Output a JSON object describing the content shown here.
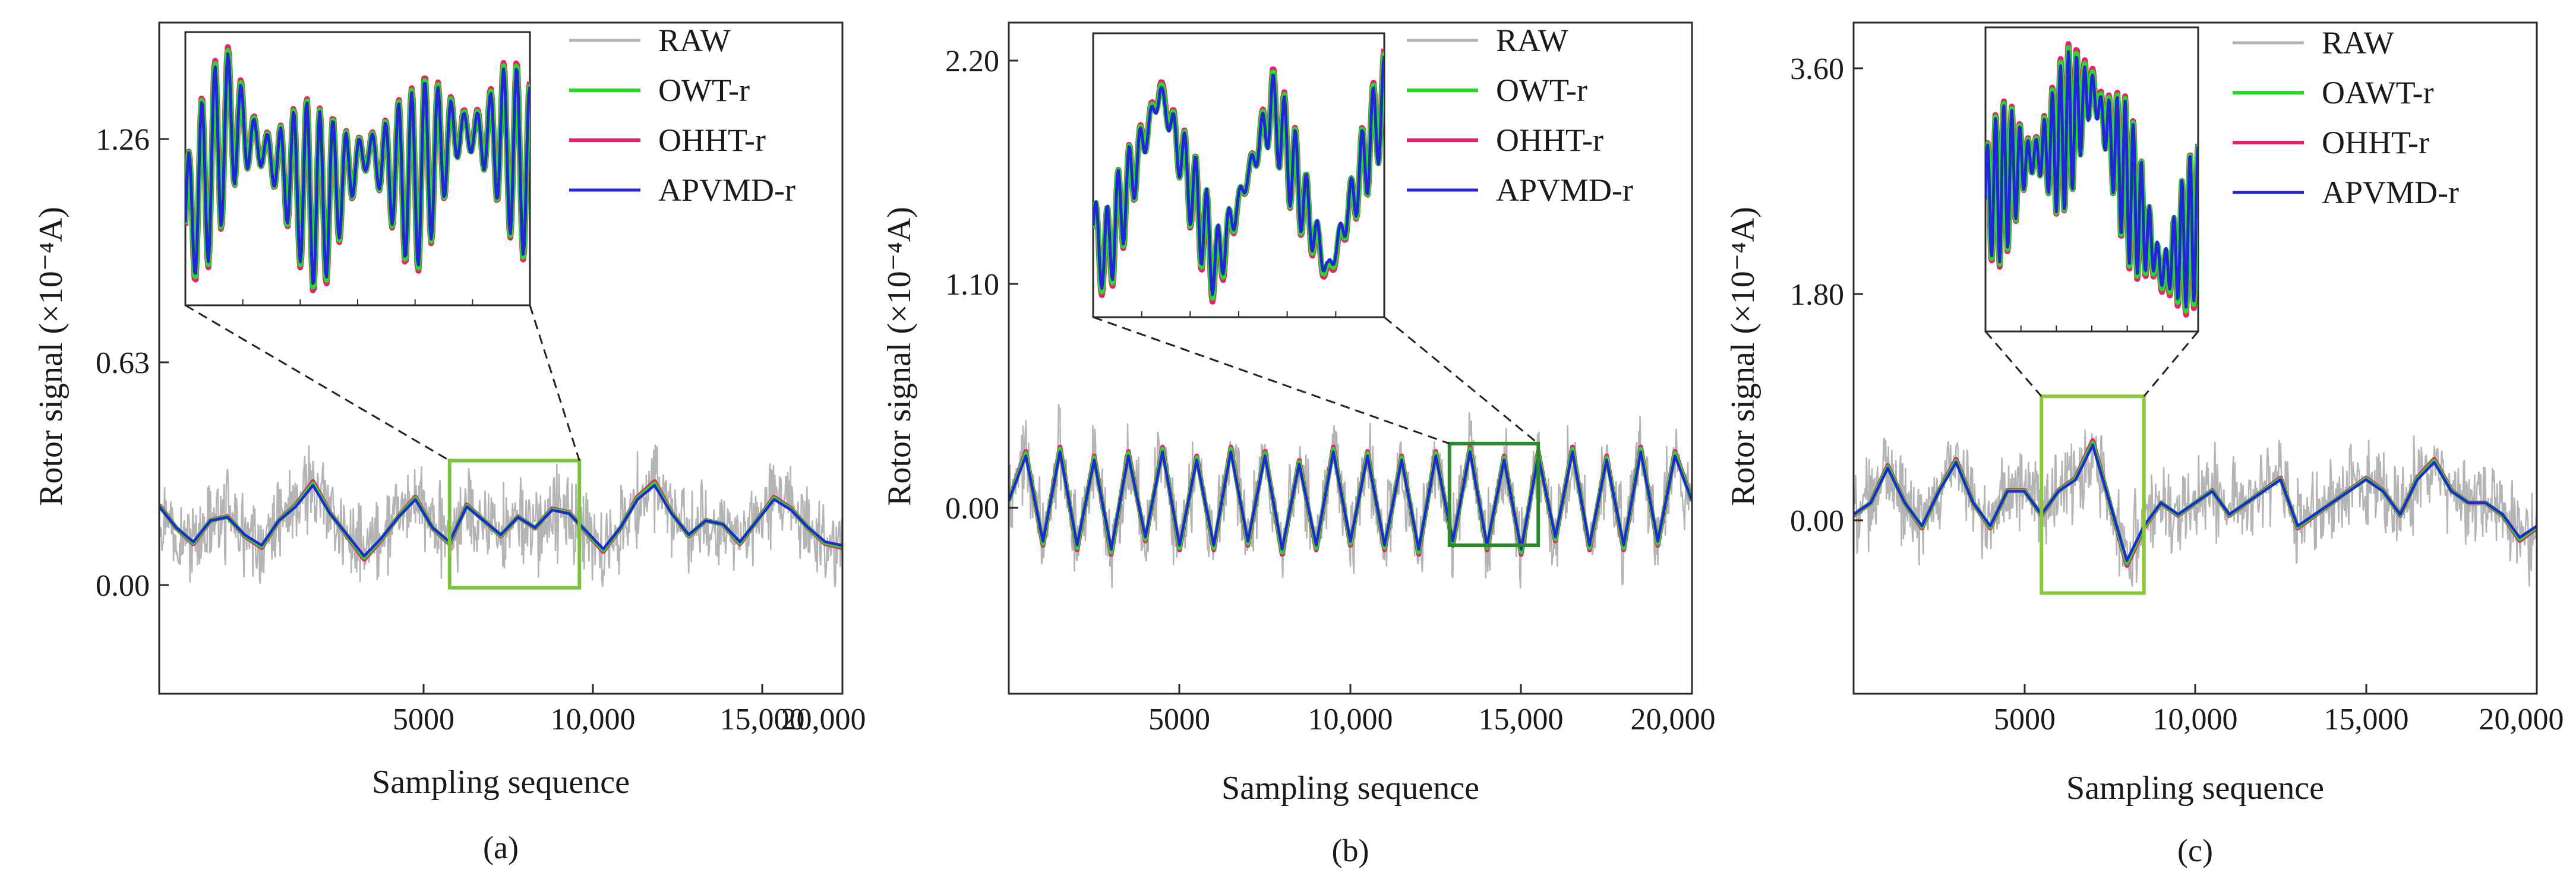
{
  "figure": {
    "panels": [
      {
        "label": "(a)",
        "xlabel": "Sampling sequence",
        "ylabel": "Rotor signal (×10⁻⁴A)",
        "xticks": [
          "5000",
          "10,000",
          "15,000",
          "20,000"
        ],
        "yticks": [
          "0.00",
          "0.63",
          "1.26"
        ],
        "legend": [
          "RAW",
          "OWT-r",
          "OHHT-r",
          "APVMD-r"
        ]
      },
      {
        "label": "(b)",
        "xlabel": "Sampling sequence",
        "ylabel": "Rotor signal (×10⁻⁴A)",
        "xticks": [
          "5000",
          "10,000",
          "15,000",
          "20,000"
        ],
        "yticks": [
          "0.00",
          "1.10",
          "2.20"
        ],
        "legend": [
          "RAW",
          "OWT-r",
          "OHHT-r",
          "APVMD-r"
        ]
      },
      {
        "label": "(c)",
        "xlabel": "Sampling sequence",
        "ylabel": "Rotor signal (×10⁻⁴A)",
        "xticks": [
          "5000",
          "10,000",
          "15,000",
          "20,000"
        ],
        "yticks": [
          "0.00",
          "1.80",
          "3.60"
        ],
        "legend": [
          "RAW",
          "OAWT-r",
          "OHHT-r",
          "APVMD-r"
        ]
      }
    ]
  },
  "colors": {
    "raw": "#b4b4b4",
    "owt": "#22dd22",
    "ohht": "#e8206e",
    "apvmd": "#2424d8",
    "zoom_box_a": "#7cc23a",
    "zoom_box_b": "#2a8a2a",
    "zoom_box_c": "#8cc63a"
  },
  "chart_data": [
    {
      "type": "line",
      "xlabel": "Sampling sequence",
      "ylabel": "Rotor signal (×10⁻⁴A)",
      "xlim": [
        500,
        20500
      ],
      "ylim": [
        -0.25,
        1.65
      ],
      "xticks": [
        5000,
        10000,
        15000,
        20000
      ],
      "yticks": [
        0.0,
        0.63,
        1.26
      ],
      "legend_position": "top-right",
      "zoom_region": {
        "x": [
          9000,
          12800
        ],
        "y": [
          0.05,
          0.41
        ]
      },
      "x": [
        500,
        1000,
        1500,
        2000,
        2500,
        3000,
        3500,
        4000,
        4500,
        5000,
        5500,
        6000,
        6500,
        7000,
        7500,
        8000,
        8500,
        9000,
        9500,
        10000,
        10500,
        11000,
        11500,
        12000,
        12500,
        13000,
        13500,
        14000,
        14500,
        15000,
        15500,
        16000,
        16500,
        17000,
        17500,
        18000,
        18500,
        19000,
        19500,
        20000,
        20500
      ],
      "series": [
        {
          "name": "RAW",
          "noise": 0.16,
          "values": [
            0.28,
            0.22,
            0.18,
            0.24,
            0.25,
            0.2,
            0.17,
            0.24,
            0.28,
            0.34,
            0.26,
            0.2,
            0.14,
            0.19,
            0.25,
            0.3,
            0.22,
            0.18,
            0.28,
            0.24,
            0.2,
            0.25,
            0.22,
            0.27,
            0.26,
            0.21,
            0.16,
            0.22,
            0.3,
            0.34,
            0.26,
            0.2,
            0.24,
            0.23,
            0.18,
            0.24,
            0.3,
            0.27,
            0.22,
            0.18,
            0.17
          ]
        },
        {
          "name": "OWT-r",
          "values": [
            0.28,
            0.22,
            0.18,
            0.24,
            0.25,
            0.2,
            0.17,
            0.24,
            0.28,
            0.34,
            0.26,
            0.2,
            0.14,
            0.19,
            0.25,
            0.3,
            0.22,
            0.18,
            0.28,
            0.24,
            0.2,
            0.25,
            0.22,
            0.27,
            0.26,
            0.21,
            0.16,
            0.22,
            0.3,
            0.34,
            0.26,
            0.2,
            0.24,
            0.23,
            0.18,
            0.24,
            0.3,
            0.27,
            0.22,
            0.18,
            0.17
          ]
        },
        {
          "name": "OHHT-r",
          "values": [
            0.28,
            0.22,
            0.18,
            0.24,
            0.25,
            0.2,
            0.17,
            0.24,
            0.28,
            0.34,
            0.26,
            0.2,
            0.14,
            0.19,
            0.25,
            0.3,
            0.22,
            0.18,
            0.28,
            0.24,
            0.2,
            0.25,
            0.22,
            0.27,
            0.26,
            0.21,
            0.16,
            0.22,
            0.3,
            0.34,
            0.26,
            0.2,
            0.24,
            0.23,
            0.18,
            0.24,
            0.3,
            0.27,
            0.22,
            0.18,
            0.17
          ]
        },
        {
          "name": "APVMD-r",
          "values": [
            0.28,
            0.22,
            0.18,
            0.24,
            0.25,
            0.2,
            0.17,
            0.24,
            0.28,
            0.34,
            0.26,
            0.2,
            0.14,
            0.19,
            0.25,
            0.3,
            0.22,
            0.18,
            0.28,
            0.24,
            0.2,
            0.25,
            0.22,
            0.27,
            0.26,
            0.21,
            0.16,
            0.22,
            0.3,
            0.34,
            0.26,
            0.2,
            0.24,
            0.23,
            0.18,
            0.24,
            0.3,
            0.27,
            0.22,
            0.18,
            0.17
          ]
        }
      ]
    },
    {
      "type": "line",
      "xlabel": "Sampling sequence",
      "ylabel": "Rotor signal (×10⁻⁴A)",
      "xlim": [
        500,
        20500
      ],
      "ylim": [
        -0.95,
        2.35
      ],
      "xticks": [
        5000,
        10000,
        15000,
        20000
      ],
      "yticks": [
        0.0,
        1.1,
        2.2
      ],
      "legend_position": "top-right",
      "zoom_region": {
        "x": [
          13400,
          16000
        ],
        "y": [
          -0.22,
          0.28
        ]
      },
      "x": [
        500,
        1000,
        1500,
        2000,
        2500,
        3000,
        3500,
        4000,
        4500,
        5000,
        5500,
        6000,
        6500,
        7000,
        7500,
        8000,
        8500,
        9000,
        9500,
        10000,
        10500,
        11000,
        11500,
        12000,
        12500,
        13000,
        13500,
        14000,
        14500,
        15000,
        15500,
        16000,
        16500,
        17000,
        17500,
        18000,
        18500,
        19000,
        19500,
        20000,
        20500
      ],
      "series": [
        {
          "name": "RAW",
          "noise": 0.28,
          "values": [
            0.0,
            0.22,
            -0.2,
            0.24,
            -0.22,
            0.2,
            -0.24,
            0.22,
            -0.18,
            0.24,
            -0.22,
            0.2,
            -0.22,
            0.24,
            -0.2,
            0.22,
            -0.24,
            0.18,
            -0.22,
            0.24,
            -0.2,
            0.22,
            -0.22,
            0.2,
            -0.24,
            0.22,
            -0.2,
            0.24,
            -0.22,
            0.2,
            -0.24,
            0.22,
            -0.18,
            0.24,
            -0.22,
            0.2,
            -0.22,
            0.24,
            -0.2,
            0.22,
            0.0
          ]
        },
        {
          "name": "OWT-r",
          "values": [
            0.0,
            0.22,
            -0.2,
            0.24,
            -0.22,
            0.2,
            -0.24,
            0.22,
            -0.18,
            0.24,
            -0.22,
            0.2,
            -0.22,
            0.24,
            -0.2,
            0.22,
            -0.24,
            0.18,
            -0.22,
            0.24,
            -0.2,
            0.22,
            -0.22,
            0.2,
            -0.24,
            0.22,
            -0.2,
            0.24,
            -0.22,
            0.2,
            -0.24,
            0.22,
            -0.18,
            0.24,
            -0.22,
            0.2,
            -0.22,
            0.24,
            -0.2,
            0.22,
            0.0
          ]
        },
        {
          "name": "OHHT-r",
          "values": [
            0.0,
            0.22,
            -0.2,
            0.24,
            -0.22,
            0.2,
            -0.24,
            0.22,
            -0.18,
            0.24,
            -0.22,
            0.2,
            -0.22,
            0.24,
            -0.2,
            0.22,
            -0.24,
            0.18,
            -0.22,
            0.24,
            -0.2,
            0.22,
            -0.22,
            0.2,
            -0.24,
            0.22,
            -0.2,
            0.24,
            -0.22,
            0.2,
            -0.24,
            0.22,
            -0.18,
            0.24,
            -0.22,
            0.2,
            -0.22,
            0.24,
            -0.2,
            0.22,
            0.0
          ]
        },
        {
          "name": "APVMD-r",
          "values": [
            0.0,
            0.22,
            -0.2,
            0.24,
            -0.22,
            0.2,
            -0.24,
            0.22,
            -0.18,
            0.24,
            -0.22,
            0.2,
            -0.22,
            0.24,
            -0.2,
            0.22,
            -0.24,
            0.18,
            -0.22,
            0.24,
            -0.2,
            0.22,
            -0.22,
            0.2,
            -0.24,
            0.22,
            -0.2,
            0.24,
            -0.22,
            0.2,
            -0.24,
            0.22,
            -0.18,
            0.24,
            -0.22,
            0.2,
            -0.22,
            0.24,
            -0.2,
            0.22,
            0.0
          ]
        }
      ]
    },
    {
      "type": "line",
      "xlabel": "Sampling sequence",
      "ylabel": "Rotor signal (×10⁻⁴A)",
      "xlim": [
        500,
        20500
      ],
      "ylim": [
        -1.75,
        4.05
      ],
      "xticks": [
        5000,
        10000,
        15000,
        20000
      ],
      "yticks": [
        0.0,
        1.8,
        3.6
      ],
      "legend_position": "top-right",
      "zoom_region": {
        "x": [
          6000,
          9000
        ],
        "y": [
          -0.88,
          0.82
        ]
      },
      "x": [
        500,
        1000,
        1500,
        2000,
        2500,
        3000,
        3500,
        4000,
        4500,
        5000,
        5500,
        6000,
        6500,
        7000,
        7500,
        8000,
        8500,
        9000,
        9500,
        10000,
        10500,
        11000,
        11500,
        12000,
        12500,
        13000,
        13500,
        14000,
        14500,
        15000,
        15500,
        16000,
        16500,
        17000,
        17500,
        18000,
        18500,
        19000,
        19500,
        20000,
        20500
      ],
      "series": [
        {
          "name": "RAW",
          "noise": 0.5,
          "values": [
            -0.2,
            -0.1,
            0.2,
            -0.1,
            -0.3,
            0.0,
            0.25,
            -0.1,
            -0.3,
            0.0,
            0.0,
            -0.2,
            0.0,
            0.1,
            0.4,
            -0.1,
            -0.6,
            -0.3,
            -0.1,
            -0.2,
            -0.1,
            0.0,
            -0.2,
            -0.1,
            0.0,
            0.1,
            -0.3,
            -0.2,
            -0.1,
            0.0,
            0.1,
            0.0,
            -0.2,
            0.1,
            0.25,
            0.0,
            -0.1,
            -0.1,
            -0.2,
            -0.4,
            -0.3
          ]
        },
        {
          "name": "OAWT-r",
          "values": [
            -0.2,
            -0.1,
            0.2,
            -0.1,
            -0.3,
            0.0,
            0.25,
            -0.1,
            -0.3,
            0.0,
            0.0,
            -0.2,
            0.0,
            0.1,
            0.4,
            -0.1,
            -0.6,
            -0.3,
            -0.1,
            -0.2,
            -0.1,
            0.0,
            -0.2,
            -0.1,
            0.0,
            0.1,
            -0.3,
            -0.2,
            -0.1,
            0.0,
            0.1,
            0.0,
            -0.2,
            0.1,
            0.25,
            0.0,
            -0.1,
            -0.1,
            -0.2,
            -0.4,
            -0.3
          ]
        },
        {
          "name": "OHHT-r",
          "values": [
            -0.2,
            -0.1,
            0.2,
            -0.1,
            -0.3,
            0.0,
            0.25,
            -0.1,
            -0.3,
            0.0,
            0.0,
            -0.2,
            0.0,
            0.1,
            0.4,
            -0.1,
            -0.6,
            -0.3,
            -0.1,
            -0.2,
            -0.1,
            0.0,
            -0.2,
            -0.1,
            0.0,
            0.1,
            -0.3,
            -0.2,
            -0.1,
            0.0,
            0.1,
            0.0,
            -0.2,
            0.1,
            0.25,
            0.0,
            -0.1,
            -0.1,
            -0.2,
            -0.4,
            -0.3
          ]
        },
        {
          "name": "APVMD-r",
          "values": [
            -0.2,
            -0.1,
            0.2,
            -0.1,
            -0.3,
            0.0,
            0.25,
            -0.1,
            -0.3,
            0.0,
            0.0,
            -0.2,
            0.0,
            0.1,
            0.4,
            -0.1,
            -0.6,
            -0.3,
            -0.1,
            -0.2,
            -0.1,
            0.0,
            -0.2,
            -0.1,
            0.0,
            0.1,
            -0.3,
            -0.2,
            -0.1,
            0.0,
            0.1,
            0.0,
            -0.2,
            0.1,
            0.25,
            0.0,
            -0.1,
            -0.1,
            -0.2,
            -0.4,
            -0.3
          ]
        }
      ]
    }
  ]
}
